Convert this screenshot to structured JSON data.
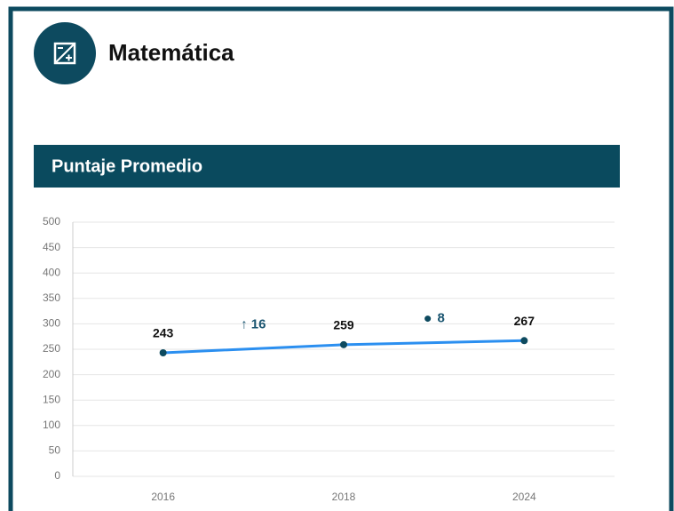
{
  "header": {
    "title": "Matemática"
  },
  "chart_data": {
    "type": "line",
    "title": "Puntaje Promedio",
    "categories": [
      "2016",
      "2018",
      "2024"
    ],
    "values": [
      243,
      259,
      267
    ],
    "color": "#2b8ff0",
    "ylim": [
      0,
      500
    ],
    "yticks": [
      0,
      50,
      100,
      150,
      200,
      250,
      300,
      350,
      400,
      450,
      500
    ],
    "grid": true,
    "annotations": [
      "↑ 16",
      "8"
    ]
  }
}
